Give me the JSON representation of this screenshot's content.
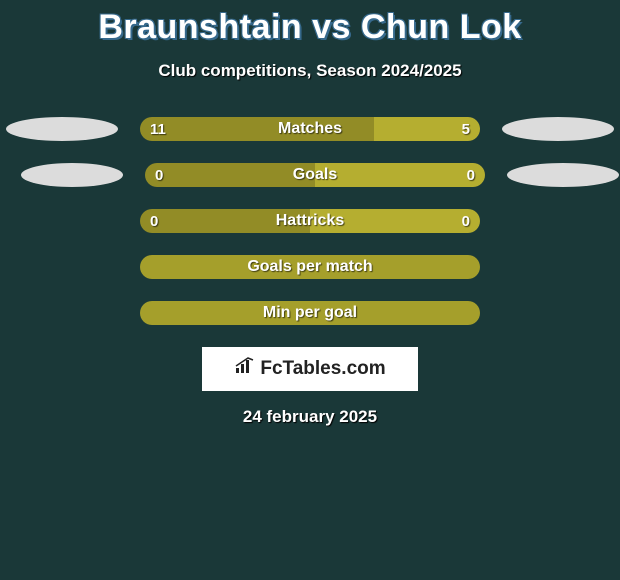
{
  "background_color": "#1a3838",
  "title": {
    "text": "Braunshtain vs Chun Lok",
    "fontsize": 34,
    "color": "#ffffff",
    "outline_color": "#36698c"
  },
  "subtitle": {
    "text": "Club competitions, Season 2024/2025",
    "fontsize": 17,
    "color": "#ffffff"
  },
  "bar_colors": {
    "left": "#928c26",
    "right": "#b5ae30",
    "full": "#a59f2b"
  },
  "ellipse_color": "#dcdcdc",
  "bars": [
    {
      "label": "Matches",
      "left_value": "11",
      "right_value": "5",
      "left_pct": 68.75,
      "right_pct": 31.25,
      "show_left_ellipse": true,
      "show_right_ellipse": true,
      "show_values": true
    },
    {
      "label": "Goals",
      "left_value": "0",
      "right_value": "0",
      "left_pct": 50,
      "right_pct": 50,
      "show_left_ellipse": true,
      "show_right_ellipse": true,
      "show_values": true
    },
    {
      "label": "Hattricks",
      "left_value": "0",
      "right_value": "0",
      "left_pct": 50,
      "right_pct": 50,
      "show_left_ellipse": false,
      "show_right_ellipse": false,
      "show_values": true
    },
    {
      "label": "Goals per match",
      "left_value": "",
      "right_value": "",
      "left_pct": 100,
      "right_pct": 0,
      "show_left_ellipse": false,
      "show_right_ellipse": false,
      "show_values": false
    },
    {
      "label": "Min per goal",
      "left_value": "",
      "right_value": "",
      "left_pct": 100,
      "right_pct": 0,
      "show_left_ellipse": false,
      "show_right_ellipse": false,
      "show_values": false
    }
  ],
  "logo": {
    "text": "FcTables.com",
    "background": "#ffffff",
    "text_color": "#222222"
  },
  "date": {
    "text": "24 february 2025",
    "fontsize": 17,
    "color": "#ffffff"
  }
}
